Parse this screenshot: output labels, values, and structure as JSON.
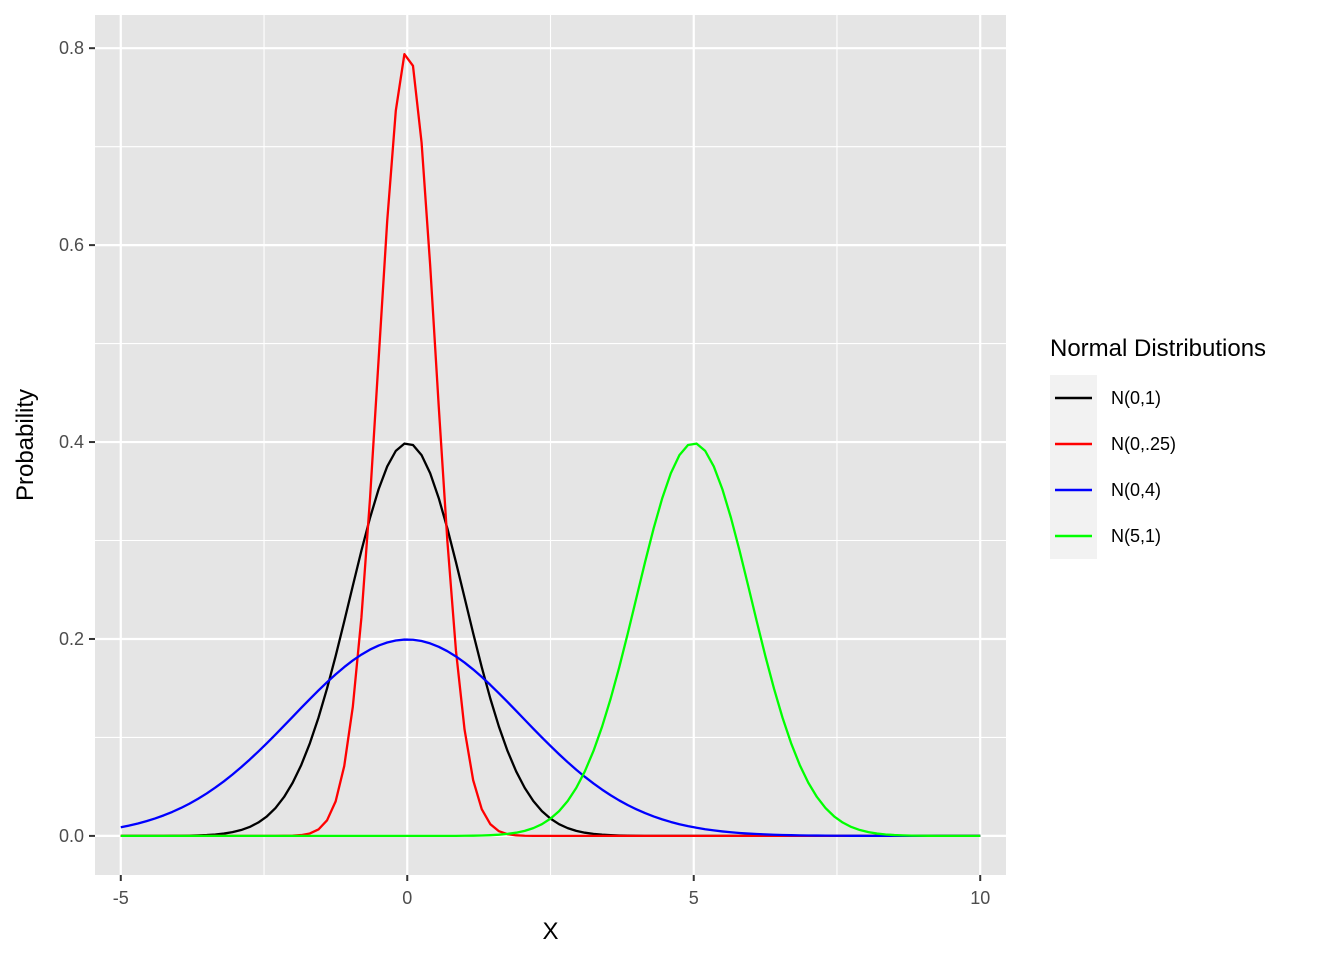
{
  "chart_data": {
    "type": "line",
    "title": "",
    "xlabel": "X",
    "ylabel": "Probability",
    "xlim": [
      -5.45,
      10.45
    ],
    "ylim": [
      -0.0397,
      0.8337
    ],
    "x_ticks": [
      -5,
      0,
      5,
      10
    ],
    "x_tick_labels": [
      "-5",
      "0",
      "5",
      "10"
    ],
    "x_minor_ticks": [
      -2.5,
      2.5,
      7.5
    ],
    "y_ticks": [
      0.0,
      0.2,
      0.4,
      0.6,
      0.8
    ],
    "y_tick_labels": [
      "0.0",
      "0.2",
      "0.4",
      "0.6",
      "0.8"
    ],
    "y_minor_ticks": [
      0.1,
      0.3,
      0.5,
      0.7
    ],
    "x_domain": [
      -5,
      10
    ],
    "sample_points": 101,
    "grid": true,
    "panel_background": "#E5E5E5",
    "grid_color": "#FFFFFF",
    "legend": {
      "title": "Normal Distributions",
      "position": "right"
    },
    "series": [
      {
        "name": "N(0,1)",
        "mean": 0,
        "variance": 1,
        "color": "#000000"
      },
      {
        "name": "N(0,.25)",
        "mean": 0,
        "variance": 0.25,
        "color": "#FF0000"
      },
      {
        "name": "N(0,4)",
        "mean": 0,
        "variance": 4,
        "color": "#0000FF"
      },
      {
        "name": "N(5,1)",
        "mean": 5,
        "variance": 1,
        "color": "#00FF00"
      }
    ]
  }
}
